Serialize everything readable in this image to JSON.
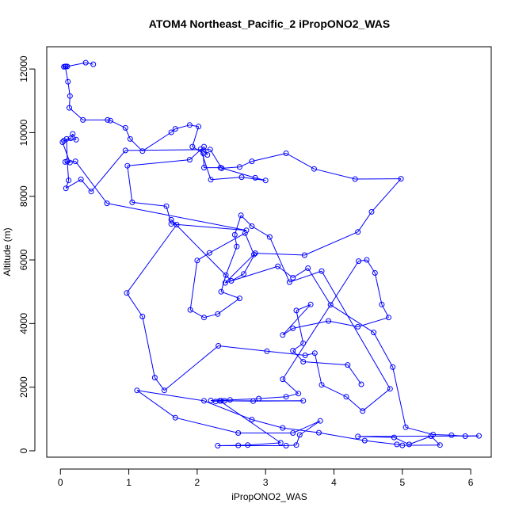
{
  "chart_data": {
    "type": "scatter",
    "title": "ATOM4 Northeast_Pacific_2 iPropONO2_WAS",
    "xlabel": "iPropONO2_WAS",
    "ylabel": "Altitude (m)",
    "xlim": [
      -0.2,
      6.3
    ],
    "ylim": [
      -200,
      12700
    ],
    "xticks": [
      0,
      1,
      2,
      3,
      4,
      5,
      6
    ],
    "yticks": [
      0,
      2000,
      4000,
      6000,
      8000,
      10000,
      12000
    ],
    "grid": false,
    "colors": {
      "series": "#0000ff"
    },
    "series": [
      {
        "connected": true,
        "x": [
          0.48,
          0.37,
          0.1,
          0.08,
          0.05,
          0.07,
          0.11,
          0.14,
          0.13,
          0.33,
          0.69,
          0.73,
          0.95,
          1.02,
          1.2,
          1.62,
          1.68,
          1.89,
          2.02,
          1.93,
          2.09,
          2.1,
          2.34,
          2.85,
          3.0,
          2.65,
          2.2,
          2.05,
          2.15,
          2.1,
          1.89,
          0.98,
          1.05,
          1.55,
          1.62,
          2.72,
          0.68,
          0.22,
          0.07,
          0.14,
          0.03,
          0.05,
          0.15,
          0.18,
          0.23,
          0.09,
          0.1,
          0.12,
          0.08,
          0.3,
          0.45,
          0.95,
          2.19,
          2.36,
          2.62,
          2.8,
          3.3,
          3.71,
          4.31,
          4.98,
          4.55,
          4.35,
          3.57,
          2.85,
          2.68,
          2.5,
          1.62,
          1.7,
          0.97,
          1.2,
          1.38,
          1.52,
          2.31,
          3.02,
          3.58,
          3.72,
          3.82,
          4.18,
          4.42,
          4.82,
          3.82,
          3.35,
          3.06,
          2.8,
          2.64,
          2.55,
          2.58,
          2.42,
          2.35,
          2.62,
          2.3,
          2.1,
          1.9,
          2.0,
          2.18,
          2.7,
          2.83,
          2.41,
          3.18,
          3.4,
          3.62,
          3.95,
          4.58,
          4.86,
          5.05,
          5.45,
          5.72,
          5.92,
          6.12,
          4.35,
          4.88,
          5.1,
          5.42,
          5.55,
          5.0,
          4.92,
          4.45,
          3.78,
          3.25,
          2.8,
          2.1,
          1.12,
          1.68,
          2.6,
          3.4,
          3.8,
          3.5,
          3.45,
          3.3,
          2.3,
          2.6,
          2.74,
          3.22,
          2.33,
          2.4,
          2.82,
          3.55,
          2.35,
          2.27,
          2.2,
          2.48,
          2.9,
          3.3,
          3.48,
          3.25,
          4.36,
          4.48,
          4.6,
          4.7,
          4.8,
          4.35,
          3.92,
          3.4,
          3.25,
          3.66,
          3.45,
          3.55,
          3.4,
          3.55,
          4.2,
          4.4
        ],
        "y": [
          12150,
          12200,
          12080,
          12080,
          12070,
          12080,
          11600,
          11150,
          10780,
          10400,
          10400,
          10380,
          10150,
          9800,
          9420,
          10010,
          10120,
          10240,
          10190,
          9560,
          9350,
          8900,
          8900,
          8580,
          8500,
          8600,
          8520,
          9480,
          9300,
          9560,
          9150,
          8960,
          7810,
          7690,
          7130,
          6930,
          7780,
          9100,
          9080,
          9060,
          9700,
          9750,
          9820,
          9960,
          9780,
          9800,
          9100,
          8500,
          8250,
          8530,
          8150,
          9440,
          9470,
          8880,
          8920,
          9100,
          9350,
          8860,
          8540,
          8550,
          7510,
          6880,
          6150,
          6210,
          5560,
          5340,
          7260,
          7110,
          4960,
          4220,
          2300,
          1900,
          3300,
          3130,
          3000,
          3070,
          2070,
          1700,
          1250,
          1950,
          5650,
          5300,
          6720,
          7060,
          7400,
          6790,
          6420,
          5520,
          5000,
          4790,
          4300,
          4190,
          4430,
          5980,
          6220,
          6840,
          6170,
          5280,
          5800,
          5440,
          5740,
          4590,
          3720,
          2630,
          740,
          510,
          490,
          460,
          470,
          450,
          420,
          200,
          460,
          180,
          170,
          200,
          320,
          570,
          720,
          980,
          1570,
          1900,
          1040,
          560,
          560,
          940,
          500,
          180,
          160,
          160,
          170,
          180,
          250,
          1570,
          1570,
          1560,
          1570,
          1570,
          1550,
          1580,
          1600,
          1640,
          1700,
          1800,
          2250,
          5960,
          6000,
          5590,
          4600,
          4190,
          3900,
          4080,
          3850,
          3640,
          4600,
          4410,
          3380,
          3150,
          2800,
          2700,
          2090
        ]
      }
    ]
  }
}
